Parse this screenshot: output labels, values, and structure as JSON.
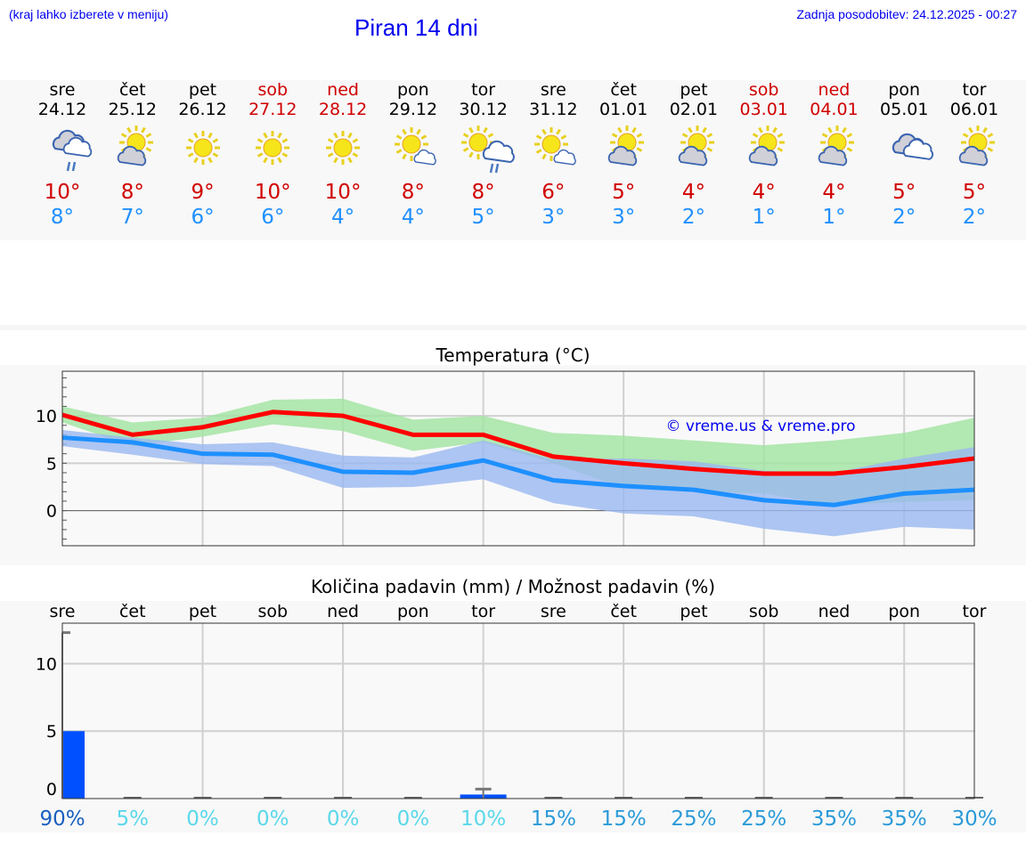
{
  "header": {
    "hint": "(kraj lahko izberete v meniju)",
    "title": "Piran 14 dni",
    "updated": "Zadnja posodobitev: 24.12.2025 - 00:27"
  },
  "days": [
    {
      "name": "sre",
      "date": "24.12",
      "weekend": false,
      "icon": "cloud-rain",
      "max": "10°",
      "min": "8°"
    },
    {
      "name": "čet",
      "date": "25.12",
      "weekend": false,
      "icon": "sun-cloud",
      "max": "8°",
      "min": "7°"
    },
    {
      "name": "pet",
      "date": "26.12",
      "weekend": false,
      "icon": "sun",
      "max": "9°",
      "min": "6°"
    },
    {
      "name": "sob",
      "date": "27.12",
      "weekend": true,
      "icon": "sun",
      "max": "10°",
      "min": "6°"
    },
    {
      "name": "ned",
      "date": "28.12",
      "weekend": true,
      "icon": "sun",
      "max": "10°",
      "min": "4°"
    },
    {
      "name": "pon",
      "date": "29.12",
      "weekend": false,
      "icon": "sun-small-cloud",
      "max": "8°",
      "min": "4°"
    },
    {
      "name": "tor",
      "date": "30.12",
      "weekend": false,
      "icon": "sun-cloud-rain",
      "max": "8°",
      "min": "5°"
    },
    {
      "name": "sre",
      "date": "31.12",
      "weekend": false,
      "icon": "sun-small-cloud",
      "max": "6°",
      "min": "3°"
    },
    {
      "name": "čet",
      "date": "01.01",
      "weekend": false,
      "icon": "sun-cloud",
      "max": "5°",
      "min": "3°"
    },
    {
      "name": "pet",
      "date": "02.01",
      "weekend": false,
      "icon": "sun-cloud",
      "max": "4°",
      "min": "2°"
    },
    {
      "name": "sob",
      "date": "03.01",
      "weekend": true,
      "icon": "sun-cloud",
      "max": "4°",
      "min": "1°"
    },
    {
      "name": "ned",
      "date": "04.01",
      "weekend": true,
      "icon": "sun-cloud",
      "max": "4°",
      "min": "1°"
    },
    {
      "name": "pon",
      "date": "05.01",
      "weekend": false,
      "icon": "cloud",
      "max": "5°",
      "min": "2°"
    },
    {
      "name": "tor",
      "date": "06.01",
      "weekend": false,
      "icon": "sun-cloud",
      "max": "5°",
      "min": "2°"
    }
  ],
  "chart_data": [
    {
      "type": "line",
      "title": "Temperatura (°C)",
      "watermark": "© vreme.us & vreme.pro",
      "ylim": [
        -3.7,
        14.7
      ],
      "yticks": [
        0,
        5,
        10
      ],
      "series": [
        {
          "name": "max",
          "color": "#ff0000",
          "values": [
            10.1,
            8.0,
            8.8,
            10.4,
            10.0,
            8.0,
            8.0,
            5.7,
            5.0,
            4.4,
            3.9,
            3.9,
            4.6,
            5.5
          ],
          "band_upper": [
            11.0,
            9.3,
            9.8,
            11.7,
            11.8,
            9.6,
            10.0,
            8.2,
            7.9,
            7.4,
            6.9,
            7.4,
            8.2,
            9.8
          ],
          "band_lower": [
            9.3,
            6.8,
            7.8,
            9.1,
            8.4,
            6.3,
            7.2,
            5.0,
            2.4,
            2.0,
            1.8,
            0.6,
            0.9,
            1.1
          ],
          "band_color": "#a0e4a0"
        },
        {
          "name": "min",
          "color": "#1e90ff",
          "values": [
            7.7,
            7.2,
            6.0,
            5.9,
            4.1,
            4.0,
            5.3,
            3.2,
            2.6,
            2.2,
            1.1,
            0.6,
            1.8,
            2.2
          ],
          "band_upper": [
            8.5,
            7.7,
            7.0,
            7.2,
            5.8,
            5.6,
            7.4,
            5.4,
            5.5,
            5.2,
            4.2,
            4.0,
            5.5,
            6.7
          ],
          "band_lower": [
            6.8,
            5.9,
            4.9,
            4.7,
            2.4,
            2.5,
            3.3,
            0.8,
            -0.3,
            -0.6,
            -1.9,
            -2.7,
            -1.7,
            -2.0
          ],
          "band_color": "#9ab8f0"
        }
      ]
    },
    {
      "type": "bar",
      "title": "Količina padavin (mm) / Možnost padavin (%)",
      "ylim": [
        0,
        13
      ],
      "yticks": [
        0,
        5,
        10
      ],
      "categories": [
        "sre",
        "čet",
        "pet",
        "sob",
        "ned",
        "pon",
        "tor",
        "sre",
        "čet",
        "pet",
        "sob",
        "ned",
        "pon",
        "tor"
      ],
      "values": [
        5.0,
        0,
        0,
        0,
        0,
        0,
        0.3,
        0,
        0,
        0,
        0,
        0,
        0,
        0
      ],
      "error_max": [
        12.3,
        0,
        0,
        0,
        0,
        0,
        0.7,
        0,
        0,
        0,
        0,
        0,
        0,
        0
      ],
      "probability": [
        "90%",
        "5%",
        "0%",
        "0%",
        "0%",
        "0%",
        "10%",
        "15%",
        "15%",
        "25%",
        "25%",
        "35%",
        "35%",
        "30%"
      ],
      "probability_colors": [
        "#1a5fbf",
        "#5ad8ea",
        "#5ad8ea",
        "#5ad8ea",
        "#5ad8ea",
        "#5ad8ea",
        "#5ad8ea",
        "#2a9ad8",
        "#2a9ad8",
        "#2a9ad8",
        "#2a9ad8",
        "#2a9ad8",
        "#2a9ad8",
        "#2a9ad8"
      ],
      "bar_color": "#0050ff"
    }
  ]
}
